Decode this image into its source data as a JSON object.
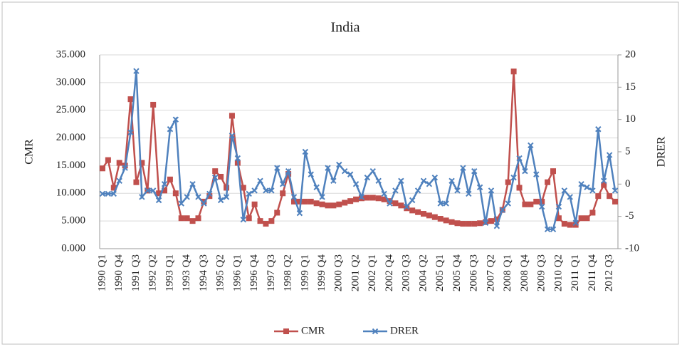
{
  "chart_data": {
    "type": "line",
    "title": "India",
    "y_label": "CMR",
    "y2_label": "DRER",
    "categories": [
      "1990 Q1",
      null,
      null,
      "1990 Q4",
      null,
      null,
      "1991 Q3",
      null,
      null,
      "1992 Q2",
      null,
      null,
      "1993 Q1",
      null,
      null,
      "1993 Q4",
      null,
      null,
      "1994 Q3",
      null,
      null,
      "1995 Q2",
      null,
      null,
      "1996 Q1",
      null,
      null,
      "1996 Q4",
      null,
      null,
      "1997 Q3",
      null,
      null,
      "1998 Q2",
      null,
      null,
      "1999 Q1",
      null,
      null,
      "1999 Q4",
      null,
      null,
      "2000 Q3",
      null,
      null,
      "2001 Q2",
      null,
      null,
      "2002 Q1",
      null,
      null,
      "2002 Q4",
      null,
      null,
      "2003 Q3",
      null,
      null,
      "2004 Q2",
      null,
      null,
      "2005 Q1",
      null,
      null,
      "2005 Q4",
      null,
      null,
      "2006 Q3",
      null,
      null,
      "2007 Q2",
      null,
      null,
      "2008 Q1",
      null,
      null,
      "2008 Q4",
      null,
      null,
      "2009 Q3",
      null,
      null,
      "2010 Q2",
      null,
      null,
      "2011 Q1",
      null,
      null,
      "2011 Q4",
      null,
      null,
      "2012 Q3",
      null
    ],
    "series": [
      {
        "name": "CMR",
        "color": "#c0504d",
        "marker": "square",
        "values": [
          14.5,
          16,
          11,
          15.5,
          15,
          27,
          12,
          15.5,
          10.5,
          26,
          10,
          10.5,
          12.5,
          10,
          5.5,
          5.5,
          5,
          5.5,
          8.5,
          9.5,
          14,
          13,
          11,
          24,
          15.5,
          11,
          5.5,
          8,
          5,
          4.5,
          5,
          6.5,
          10,
          13.5,
          8.5,
          8.5,
          8.5,
          8.5,
          8.2,
          8,
          7.8,
          7.8,
          8,
          8.3,
          8.6,
          8.9,
          9.1,
          9.2,
          9.2,
          9.1,
          8.9,
          8.6,
          8.2,
          7.8,
          7.3,
          6.9,
          6.6,
          6.3,
          6,
          5.7,
          5.4,
          5.1,
          4.8,
          4.6,
          4.5,
          4.5,
          4.5,
          4.6,
          4.8,
          5,
          5.3,
          7,
          12,
          32,
          11,
          8,
          8,
          8.5,
          8.5,
          12,
          14,
          5.5,
          4.5,
          4.3,
          4.3,
          5.5,
          5.5,
          6.5,
          9.5,
          11.5,
          9.5,
          8.5
        ]
      },
      {
        "name": "DRER",
        "color": "#4f81bd",
        "marker": "x",
        "axis": "y2",
        "values": [
          -1.5,
          -1.5,
          -1.5,
          0.5,
          2.5,
          8,
          17.5,
          -2,
          -1,
          -1,
          -2.5,
          0,
          8.5,
          10,
          -3,
          -2,
          0,
          -2,
          -3,
          -1.5,
          1,
          -2.5,
          -2,
          7.5,
          4,
          -5.5,
          -1.5,
          -1,
          0.5,
          -1,
          -1,
          2.5,
          0,
          2,
          -2,
          -4.5,
          5,
          1.5,
          -0.5,
          -2,
          2.5,
          0.5,
          3,
          2,
          1.5,
          0,
          -2,
          1,
          2,
          0.5,
          -1.5,
          -3,
          -1,
          0.5,
          -3.5,
          -2.5,
          -1,
          0.5,
          0,
          1,
          -3,
          -3,
          0.5,
          -1,
          2.5,
          -1.5,
          2,
          -0.5,
          -6,
          -1,
          -6.5,
          -4,
          -3,
          1,
          4,
          2,
          6,
          1.5,
          -3.5,
          -7,
          -7,
          -3.5,
          -1,
          -2,
          -6,
          0,
          -0.5,
          -1,
          8.5,
          0.5,
          4.5,
          -1
        ]
      }
    ],
    "ylim": [
      0,
      35
    ],
    "yticks": [
      {
        "value": 0,
        "label": "0.000"
      },
      {
        "value": 5,
        "label": "5.000"
      },
      {
        "value": 10,
        "label": "10.000"
      },
      {
        "value": 15,
        "label": "15.000"
      },
      {
        "value": 20,
        "label": "20.000"
      },
      {
        "value": 25,
        "label": "25.000"
      },
      {
        "value": 30,
        "label": "30.000"
      },
      {
        "value": 35,
        "label": "35.000"
      }
    ],
    "y2lim": [
      -10,
      20
    ],
    "y2ticks": [
      -10,
      -5,
      0,
      5,
      10,
      15,
      20
    ],
    "grid": true,
    "legend": "bottom"
  }
}
